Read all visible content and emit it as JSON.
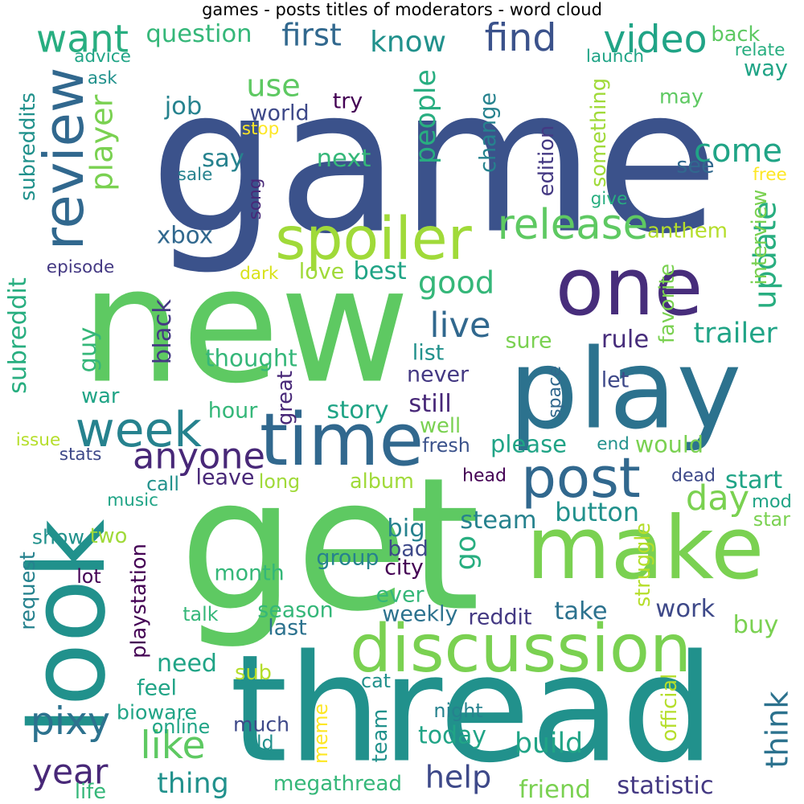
{
  "title": "games - posts titles of moderators - word cloud",
  "words": [
    {
      "text": "game",
      "color": "#3b528b"
    },
    {
      "text": "new",
      "color": "#5ec962"
    },
    {
      "text": "get",
      "color": "#5ec962"
    },
    {
      "text": "thread",
      "color": "#21918c"
    },
    {
      "text": "look",
      "color": "#21918c"
    },
    {
      "text": "play",
      "color": "#2c728e"
    },
    {
      "text": "one",
      "color": "#472d7b"
    },
    {
      "text": "make",
      "color": "#7ad151"
    },
    {
      "text": "discussion",
      "color": "#7ad151"
    },
    {
      "text": "time",
      "color": "#31688e"
    },
    {
      "text": "post",
      "color": "#31688e"
    },
    {
      "text": "spoiler",
      "color": "#a0da39"
    },
    {
      "text": "week",
      "color": "#26828e"
    },
    {
      "text": "review",
      "color": "#31688e"
    },
    {
      "text": "release",
      "color": "#5ec962"
    },
    {
      "text": "update",
      "color": "#28ae80"
    },
    {
      "text": "come",
      "color": "#20a486"
    },
    {
      "text": "video",
      "color": "#20a486"
    },
    {
      "text": "find",
      "color": "#3b528b"
    },
    {
      "text": "want",
      "color": "#28ae80"
    },
    {
      "text": "first",
      "color": "#31688e"
    },
    {
      "text": "know",
      "color": "#21918c"
    },
    {
      "text": "player",
      "color": "#7ad151"
    },
    {
      "text": "use",
      "color": "#5ec962"
    },
    {
      "text": "world",
      "color": "#3e4989"
    },
    {
      "text": "people",
      "color": "#28ae80"
    },
    {
      "text": "live",
      "color": "#31688e"
    },
    {
      "text": "good",
      "color": "#35b779"
    },
    {
      "text": "anyone",
      "color": "#482878"
    },
    {
      "text": "day",
      "color": "#7ad151"
    },
    {
      "text": "button",
      "color": "#21918c"
    },
    {
      "text": "think",
      "color": "#2c728e"
    },
    {
      "text": "like",
      "color": "#5ec962"
    },
    {
      "text": "pixy",
      "color": "#2c728e"
    },
    {
      "text": "year",
      "color": "#482878"
    },
    {
      "text": "help",
      "color": "#3e4989"
    },
    {
      "text": "statistic",
      "color": "#443983"
    },
    {
      "text": "megathread",
      "color": "#35b779"
    },
    {
      "text": "thing",
      "color": "#21918c"
    },
    {
      "text": "friend",
      "color": "#7ad151"
    },
    {
      "text": "build",
      "color": "#20a486"
    },
    {
      "text": "today",
      "color": "#20a486"
    },
    {
      "text": "trailer",
      "color": "#20a486"
    },
    {
      "text": "guy",
      "color": "#35b779"
    },
    {
      "text": "subreddit",
      "color": "#28ae80"
    },
    {
      "text": "subreddits",
      "color": "#21918c"
    },
    {
      "text": "question",
      "color": "#35b779"
    },
    {
      "text": "advice",
      "color": "#20a486"
    },
    {
      "text": "ask",
      "color": "#21918c"
    },
    {
      "text": "back",
      "color": "#5ec962"
    },
    {
      "text": "relate",
      "color": "#28ae80"
    },
    {
      "text": "launch",
      "color": "#20a486"
    },
    {
      "text": "way",
      "color": "#20a486"
    },
    {
      "text": "may",
      "color": "#5ec962"
    },
    {
      "text": "job",
      "color": "#26828e"
    },
    {
      "text": "try",
      "color": "#440154"
    },
    {
      "text": "stop",
      "color": "#fde725"
    },
    {
      "text": "say",
      "color": "#26828e"
    },
    {
      "text": "next",
      "color": "#35b779"
    },
    {
      "text": "change",
      "color": "#26828e"
    },
    {
      "text": "edition",
      "color": "#443983"
    },
    {
      "text": "something",
      "color": "#a0da39"
    },
    {
      "text": "see",
      "color": "#31688e"
    },
    {
      "text": "free",
      "color": "#fde725"
    },
    {
      "text": "give",
      "color": "#28ae80"
    },
    {
      "text": "interview",
      "color": "#7ad151"
    },
    {
      "text": "song",
      "color": "#482878"
    },
    {
      "text": "sale",
      "color": "#26828e"
    },
    {
      "text": "xbox",
      "color": "#31688e"
    },
    {
      "text": "anthem",
      "color": "#b5de2b"
    },
    {
      "text": "episode",
      "color": "#443983"
    },
    {
      "text": "dark",
      "color": "#d8e219"
    },
    {
      "text": "love",
      "color": "#a0da39"
    },
    {
      "text": "best",
      "color": "#20a486"
    },
    {
      "text": "black",
      "color": "#443983"
    },
    {
      "text": "thought",
      "color": "#35b779"
    },
    {
      "text": "rule",
      "color": "#472d7b"
    },
    {
      "text": "sure",
      "color": "#7ad151"
    },
    {
      "text": "favorite",
      "color": "#7ad151"
    },
    {
      "text": "list",
      "color": "#21918c"
    },
    {
      "text": "never",
      "color": "#443983"
    },
    {
      "text": "let",
      "color": "#3e4989"
    },
    {
      "text": "war",
      "color": "#20a486"
    },
    {
      "text": "hour",
      "color": "#35b779"
    },
    {
      "text": "great",
      "color": "#482878"
    },
    {
      "text": "story",
      "color": "#20a486"
    },
    {
      "text": "still",
      "color": "#482878"
    },
    {
      "text": "well",
      "color": "#7ad151"
    },
    {
      "text": "space",
      "color": "#31688e"
    },
    {
      "text": "end",
      "color": "#21918c"
    },
    {
      "text": "would",
      "color": "#7ad151"
    },
    {
      "text": "please",
      "color": "#20a486"
    },
    {
      "text": "fresh",
      "color": "#3b528b"
    },
    {
      "text": "issue",
      "color": "#b5de2b"
    },
    {
      "text": "stats",
      "color": "#3e4989"
    },
    {
      "text": "call",
      "color": "#21918c"
    },
    {
      "text": "music",
      "color": "#20a486"
    },
    {
      "text": "long",
      "color": "#a0da39"
    },
    {
      "text": "leave",
      "color": "#482878"
    },
    {
      "text": "album",
      "color": "#a0da39"
    },
    {
      "text": "head",
      "color": "#440154"
    },
    {
      "text": "dead",
      "color": "#3e4989"
    },
    {
      "text": "start",
      "color": "#20a486"
    },
    {
      "text": "mod",
      "color": "#20a486"
    },
    {
      "text": "star",
      "color": "#7ad151"
    },
    {
      "text": "steam",
      "color": "#26828e"
    },
    {
      "text": "go",
      "color": "#28ae80"
    },
    {
      "text": "big",
      "color": "#26828e"
    },
    {
      "text": "show",
      "color": "#21918c"
    },
    {
      "text": "two",
      "color": "#a0da39"
    },
    {
      "text": "request",
      "color": "#26828e"
    },
    {
      "text": "playstation",
      "color": "#440154"
    },
    {
      "text": "group",
      "color": "#26828e"
    },
    {
      "text": "bad",
      "color": "#3e4989"
    },
    {
      "text": "city",
      "color": "#440154"
    },
    {
      "text": "struggle",
      "color": "#b5de2b"
    },
    {
      "text": "month",
      "color": "#35b779"
    },
    {
      "text": "lot",
      "color": "#440154"
    },
    {
      "text": "ever",
      "color": "#35b779"
    },
    {
      "text": "talk",
      "color": "#35b779"
    },
    {
      "text": "season",
      "color": "#35b779"
    },
    {
      "text": "weekly",
      "color": "#2c728e"
    },
    {
      "text": "reddit",
      "color": "#443983"
    },
    {
      "text": "take",
      "color": "#2c728e"
    },
    {
      "text": "work",
      "color": "#3e4989"
    },
    {
      "text": "buy",
      "color": "#7ad151"
    },
    {
      "text": "last",
      "color": "#2c728e"
    },
    {
      "text": "need",
      "color": "#20a486"
    },
    {
      "text": "sub",
      "color": "#b5de2b"
    },
    {
      "text": "cat",
      "color": "#21918c"
    },
    {
      "text": "feel",
      "color": "#20a486"
    },
    {
      "text": "official",
      "color": "#b5de2b"
    },
    {
      "text": "bioware",
      "color": "#20a486"
    },
    {
      "text": "much",
      "color": "#3e4989"
    },
    {
      "text": "night",
      "color": "#26828e"
    },
    {
      "text": "online",
      "color": "#20a486"
    },
    {
      "text": "old",
      "color": "#21918c"
    },
    {
      "text": "meme",
      "color": "#fde725"
    },
    {
      "text": "team",
      "color": "#21918c"
    },
    {
      "text": "life",
      "color": "#35b779"
    }
  ]
}
